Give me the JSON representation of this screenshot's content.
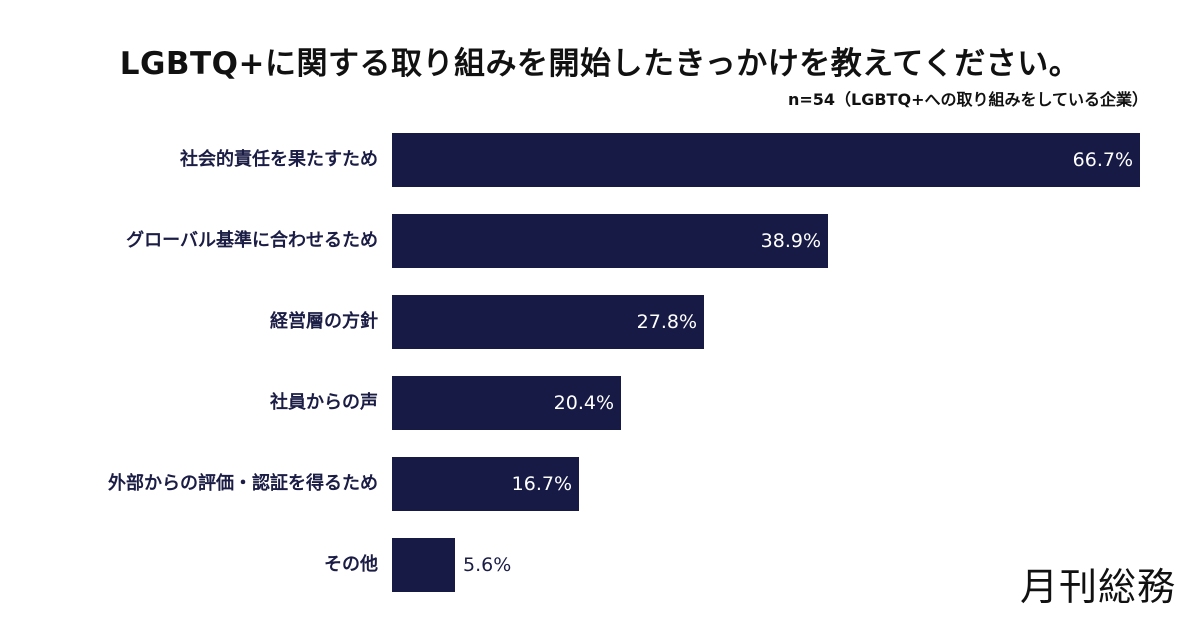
{
  "header": {
    "title": "LGBTQ+に関する取り組みを開始したきっかけを教えてください。",
    "subtitle": "n=54（LGBTQ+への取り組みをしている企業）"
  },
  "brand": {
    "logo_text": "月刊総務"
  },
  "colors": {
    "bar": "#161a45",
    "label": "#1b1d45",
    "background": "#ffffff"
  },
  "chart_data": {
    "type": "bar",
    "orientation": "horizontal",
    "title": "LGBTQ+に関する取り組みを開始したきっかけを教えてください。",
    "subtitle": "n=54（LGBTQ+への取り組みをしている企業）",
    "categories": [
      "社会的責任を果たすため",
      "グローバル基準に合わせるため",
      "経営層の方針",
      "社員からの声",
      "外部からの評価・認証を得るため",
      "その他"
    ],
    "values": [
      66.7,
      38.9,
      27.8,
      20.4,
      16.7,
      5.6
    ],
    "value_labels": [
      "66.7%",
      "38.9%",
      "27.8%",
      "20.4%",
      "16.7%",
      "5.6%"
    ],
    "unit": "%",
    "xlabel": "",
    "ylabel": "",
    "grid": false,
    "legend": null
  }
}
